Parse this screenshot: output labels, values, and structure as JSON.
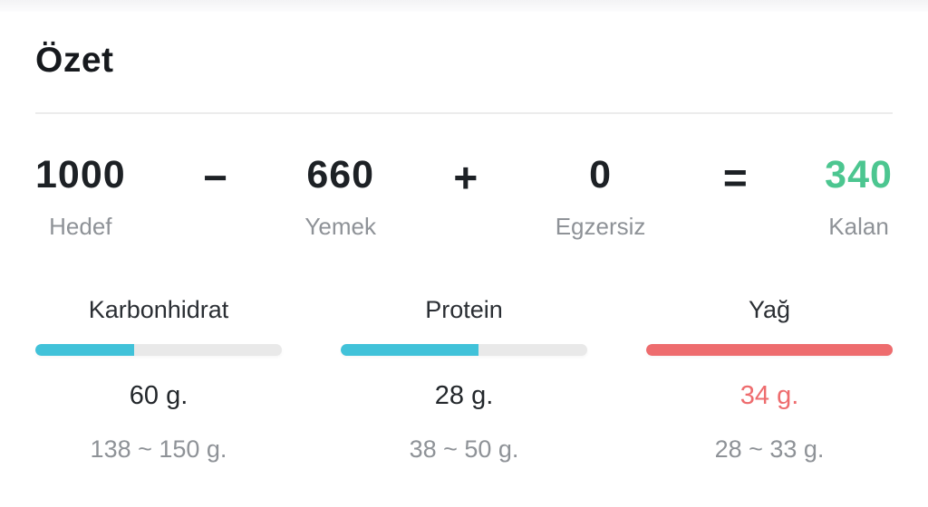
{
  "title": "Özet",
  "colors": {
    "text_dark": "#1d2125",
    "text_gray": "#8e9297",
    "green": "#4cc690",
    "cyan": "#41c2d9",
    "coral": "#ee6c6e",
    "track": "#e9e9e9",
    "divider": "#ececec"
  },
  "equation": {
    "terms": [
      {
        "value": "1000",
        "label": "Hedef"
      },
      {
        "value": "660",
        "label": "Yemek"
      },
      {
        "value": "0",
        "label": "Egzersiz"
      },
      {
        "value": "340",
        "label": "Kalan"
      }
    ],
    "operators": {
      "minus": "−",
      "plus": "+",
      "equals": "="
    }
  },
  "macros": [
    {
      "name": "Karbonhidrat",
      "value": "60 g.",
      "range": "138 ~ 150 g.",
      "percent": 40,
      "bar_color": "#41c2d9",
      "value_color": "#23272b"
    },
    {
      "name": "Protein",
      "value": "28 g.",
      "range": "38 ~ 50 g.",
      "percent": 56,
      "bar_color": "#41c2d9",
      "value_color": "#23272b"
    },
    {
      "name": "Yağ",
      "value": "34 g.",
      "range": "28 ~ 33 g.",
      "percent": 100,
      "bar_color": "#ee6c6e",
      "value_color": "#ee6c6e"
    }
  ]
}
